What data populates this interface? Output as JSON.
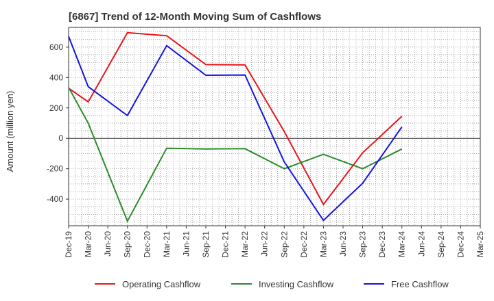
{
  "chart_data": {
    "type": "line",
    "title": "[6867]  Trend of 12-Month Moving Sum of Cashflows",
    "xlabel": "",
    "ylabel": "Amount (million yen)",
    "categories": [
      "Dec-19",
      "Mar-20",
      "Jun-20",
      "Sep-20",
      "Dec-20",
      "Mar-21",
      "Jun-21",
      "Sep-21",
      "Dec-21",
      "Mar-22",
      "Jun-22",
      "Sep-22",
      "Dec-22",
      "Mar-23",
      "Jun-23",
      "Sep-23",
      "Dec-23",
      "Mar-24",
      "Jun-24",
      "Sep-24",
      "Dec-24",
      "Mar-25"
    ],
    "y_ticks": [
      600,
      400,
      200,
      0,
      -200,
      -400
    ],
    "ylim": [
      -575,
      730
    ],
    "grid": true,
    "legend_position": "bottom",
    "series": [
      {
        "name": "Operating Cashflow",
        "color": "#e8141a",
        "values": [
          330,
          240,
          null,
          695,
          null,
          675,
          null,
          485,
          null,
          483,
          null,
          45,
          null,
          -435,
          null,
          -95,
          null,
          145,
          null,
          null,
          null,
          null
        ]
      },
      {
        "name": "Investing Cashflow",
        "color": "#2a8a2a",
        "values": [
          335,
          100,
          null,
          -545,
          null,
          -65,
          null,
          -70,
          null,
          -68,
          null,
          -200,
          null,
          -105,
          null,
          -200,
          null,
          -70,
          null,
          null,
          null,
          null
        ]
      },
      {
        "name": "Free Cashflow",
        "color": "#1414e0",
        "values": [
          670,
          340,
          null,
          150,
          null,
          610,
          null,
          415,
          null,
          417,
          null,
          -155,
          null,
          -540,
          null,
          -295,
          null,
          75,
          null,
          null,
          null,
          null
        ]
      }
    ]
  }
}
